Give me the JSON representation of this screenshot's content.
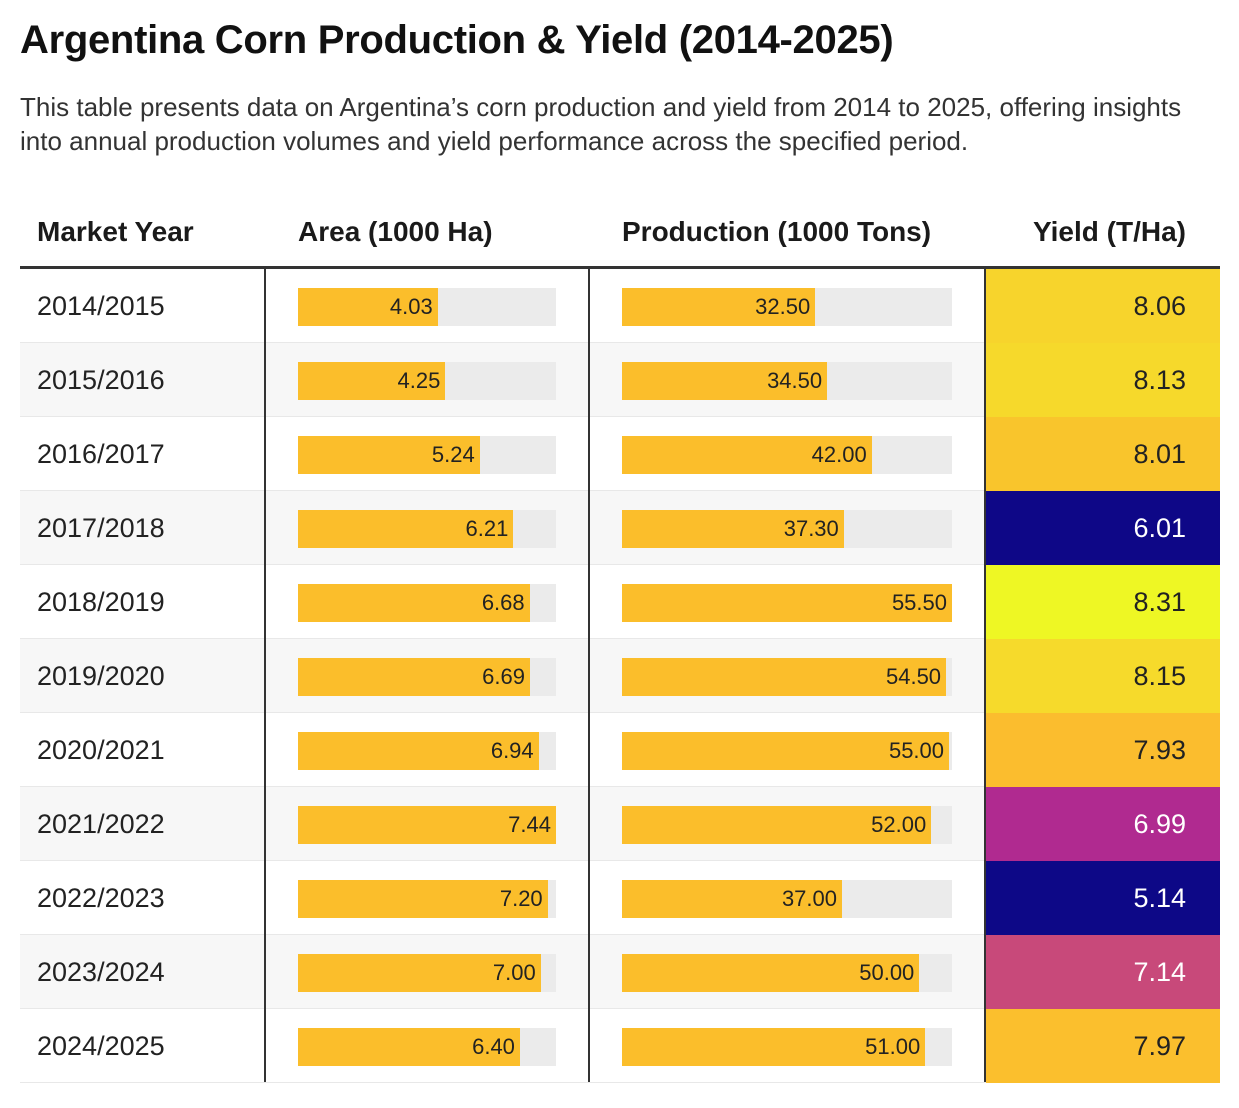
{
  "title": "Argentina Corn Production & Yield (2014-2025)",
  "subtitle": "This table presents data on Argentina’s corn production and yield from 2014 to 2025, offering insights into annual production volumes and yield performance across the specified period.",
  "colors": {
    "bar": "#fbbe2b",
    "bar_track": "#ebebeb",
    "yield_scale": "plasma (dark blue low → yellow high)"
  },
  "chart_data": {
    "type": "table",
    "columns": [
      "Market Year",
      "Area (1000 Ha)",
      "Production (1000 Tons)",
      "Yield (T/Ha)"
    ],
    "area_max": 7.44,
    "production_max": 55.5,
    "rows": [
      {
        "year": "2014/2015",
        "area": "4.03",
        "production": "32.50",
        "yield": "8.06",
        "yield_color": "#f7d42c",
        "yield_text_color": "#222222"
      },
      {
        "year": "2015/2016",
        "area": "4.25",
        "production": "34.50",
        "yield": "8.13",
        "yield_color": "#f6d92b",
        "yield_text_color": "#222222"
      },
      {
        "year": "2016/2017",
        "area": "5.24",
        "production": "42.00",
        "yield": "8.01",
        "yield_color": "#f9c52c",
        "yield_text_color": "#222222"
      },
      {
        "year": "2017/2018",
        "area": "6.21",
        "production": "37.30",
        "yield": "6.01",
        "yield_color": "#0e0787",
        "yield_text_color": "#ffffff"
      },
      {
        "year": "2018/2019",
        "area": "6.68",
        "production": "55.50",
        "yield": "8.31",
        "yield_color": "#eef724",
        "yield_text_color": "#222222"
      },
      {
        "year": "2019/2020",
        "area": "6.69",
        "production": "54.50",
        "yield": "8.15",
        "yield_color": "#f6da2b",
        "yield_text_color": "#222222"
      },
      {
        "year": "2020/2021",
        "area": "6.94",
        "production": "55.00",
        "yield": "7.93",
        "yield_color": "#fbbd2e",
        "yield_text_color": "#222222"
      },
      {
        "year": "2021/2022",
        "area": "7.44",
        "production": "52.00",
        "yield": "6.99",
        "yield_color": "#b02a90",
        "yield_text_color": "#ffffff"
      },
      {
        "year": "2022/2023",
        "area": "7.20",
        "production": "37.00",
        "yield": "5.14",
        "yield_color": "#0d0887",
        "yield_text_color": "#ffffff"
      },
      {
        "year": "2023/2024",
        "area": "7.00",
        "production": "50.00",
        "yield": "7.14",
        "yield_color": "#c8497a",
        "yield_text_color": "#ffffff"
      },
      {
        "year": "2024/2025",
        "area": "6.40",
        "production": "51.00",
        "yield": "7.97",
        "yield_color": "#fbbf2d",
        "yield_text_color": "#222222"
      }
    ]
  }
}
